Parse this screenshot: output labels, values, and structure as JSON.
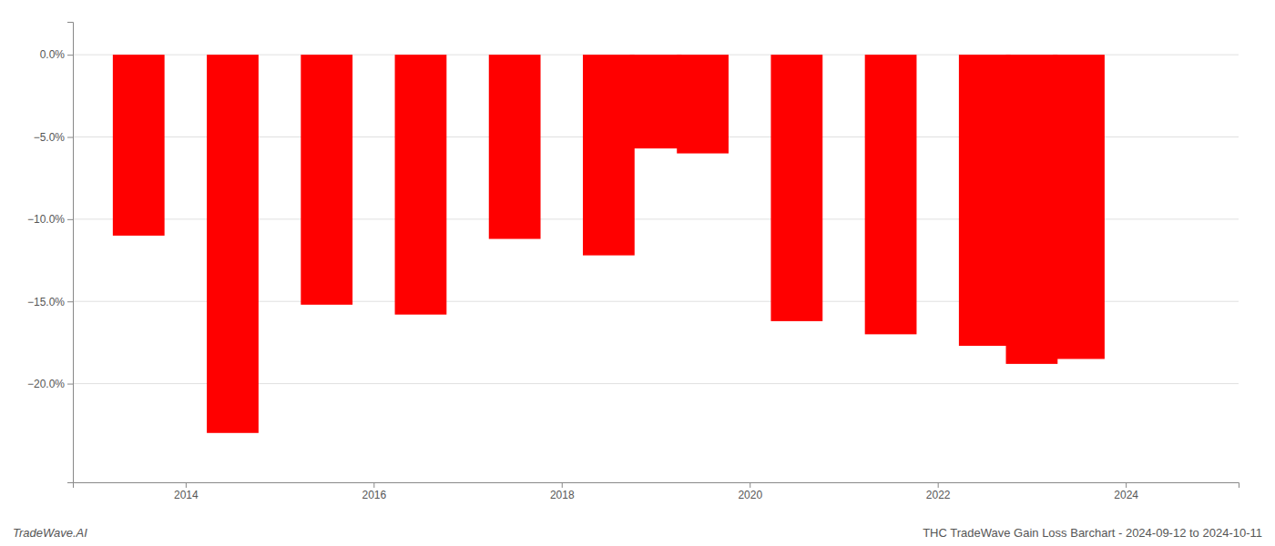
{
  "chart_data": {
    "type": "bar",
    "x": [
      2013.5,
      2014.5,
      2015.5,
      2016.5,
      2017.5,
      2018.5,
      2019.0,
      2019.5,
      2020.5,
      2021.5,
      2022.5,
      2023.0,
      2023.5
    ],
    "values": [
      -11.0,
      -23.0,
      -15.2,
      -15.8,
      -11.2,
      -12.2,
      -5.7,
      -6.0,
      -16.2,
      -17.0,
      -17.7,
      -18.8,
      -18.5
    ],
    "color": "#ff0000",
    "xlim": [
      2012.8,
      2025.2
    ],
    "xticks": [
      2014,
      2016,
      2018,
      2020,
      2022,
      2024
    ],
    "ylim": [
      -26,
      2.0
    ],
    "yticks": [
      {
        "value": 0.0,
        "label": "0.0%"
      },
      {
        "value": -5.0,
        "label": "−5.0%"
      },
      {
        "value": -10.0,
        "label": "−10.0%"
      },
      {
        "value": -15.0,
        "label": "−15.0%"
      },
      {
        "value": -20.0,
        "label": "−20.0%"
      }
    ],
    "grid": true,
    "annotations": [
      "TradeWave.AI",
      "THC TradeWave Gain Loss Barchart - 2024-09-12 to 2024-10-11"
    ]
  }
}
